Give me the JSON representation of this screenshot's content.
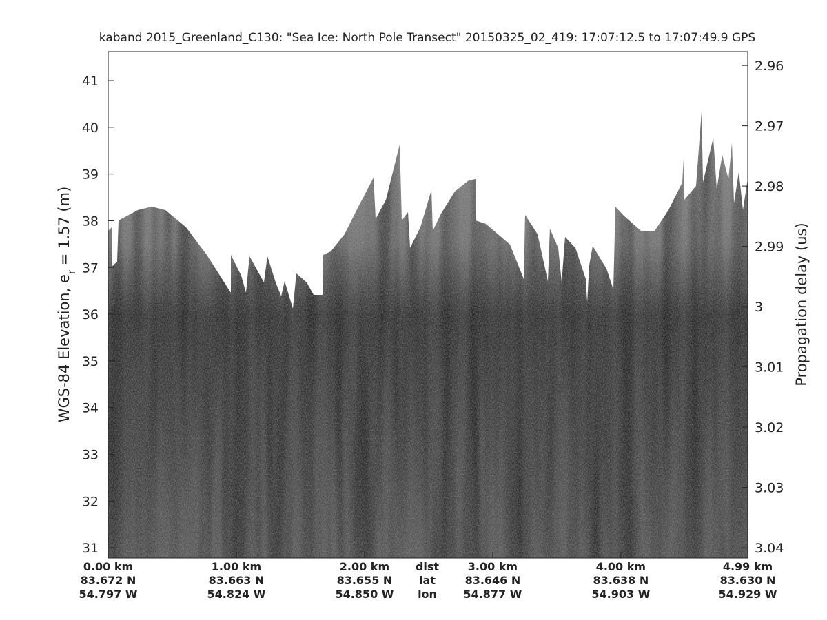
{
  "chart_data": {
    "type": "radar-echogram",
    "title": "kaband 2015_Greenland_C130: \"Sea Ice: North Pole Transect\"  20150325_02_419: 17:07:12.5 to 17:07:49.9 GPS",
    "ylabel": [
      "WGS-84 Elevation, e",
      "r",
      " = 1.57 (m)"
    ],
    "y2label": "Propagation delay (us)",
    "ylim": [
      30.78,
      41.62
    ],
    "yticks": [
      31,
      32,
      33,
      34,
      35,
      36,
      37,
      38,
      39,
      40,
      41
    ],
    "y2lim": [
      2.9577,
      3.0417
    ],
    "y2ticks": [
      2.96,
      2.97,
      2.98,
      2.99,
      3,
      3.01,
      3.02,
      3.03,
      3.04
    ],
    "xlim": [
      0,
      4.99
    ],
    "xticks": [
      {
        "value": 0,
        "label": "0.00 km"
      },
      {
        "value": 1,
        "label": "1.00 km"
      },
      {
        "value": 2,
        "label": "2.00 km"
      },
      {
        "value": 3,
        "label": "3.00 km"
      },
      {
        "value": 4,
        "label": "4.00 km"
      },
      {
        "value": 4.99,
        "label": "4.99 km"
      }
    ],
    "lat_labels": [
      "83.672 N",
      "83.663 N",
      "83.655 N",
      "83.646 N",
      "83.638 N",
      "83.630 N"
    ],
    "lon_labels": [
      "54.797 W",
      "54.824 W",
      "54.850 W",
      "54.877 W",
      "54.903 W",
      "54.929 W"
    ],
    "axis_row_names": [
      "dist",
      "lat",
      "lon"
    ]
  }
}
